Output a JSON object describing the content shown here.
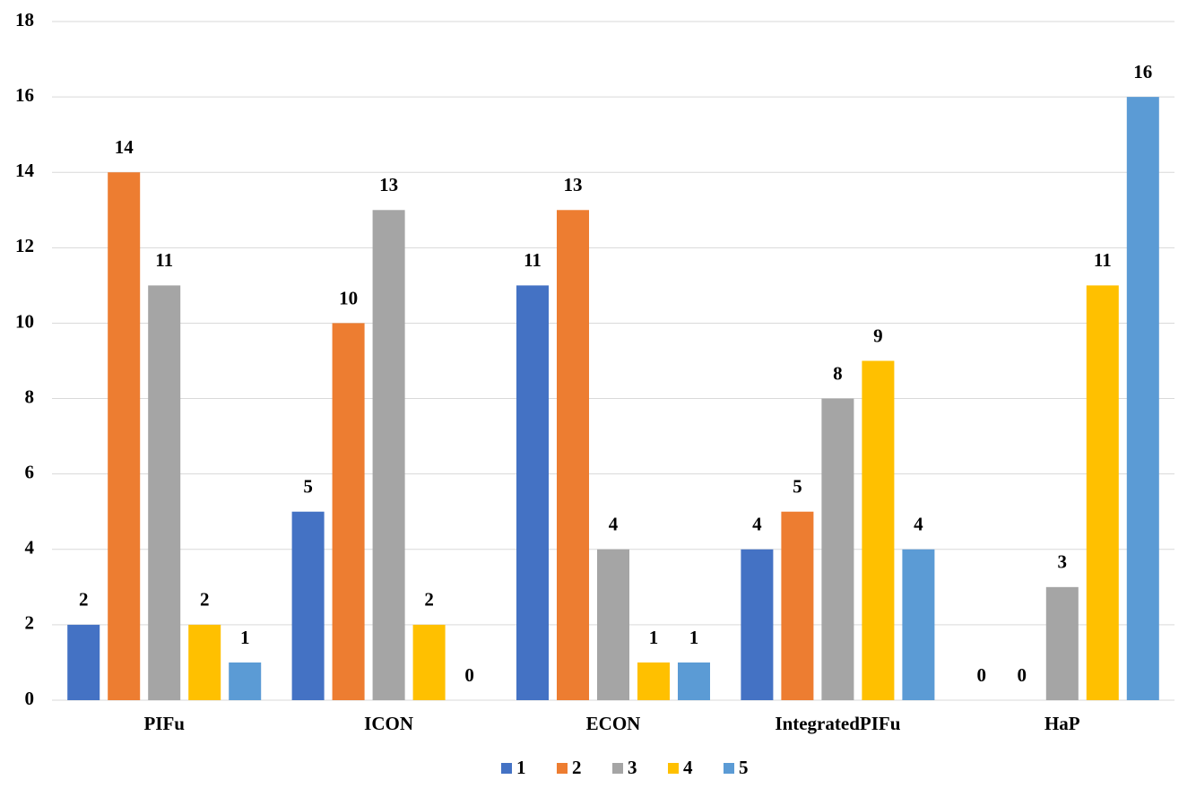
{
  "chart_data": {
    "type": "bar",
    "categories": [
      "PIFu",
      "ICON",
      "ECON",
      "IntegratedPIFu",
      "HaP"
    ],
    "series": [
      {
        "name": "1",
        "color": "#4472c4",
        "values": [
          2,
          5,
          11,
          4,
          0
        ]
      },
      {
        "name": "2",
        "color": "#ed7d31",
        "values": [
          14,
          10,
          13,
          5,
          0
        ]
      },
      {
        "name": "3",
        "color": "#a5a5a5",
        "values": [
          11,
          13,
          4,
          8,
          3
        ]
      },
      {
        "name": "4",
        "color": "#ffc000",
        "values": [
          2,
          2,
          1,
          9,
          11
        ]
      },
      {
        "name": "5",
        "color": "#5b9bd5",
        "values": [
          1,
          0,
          1,
          4,
          16
        ]
      }
    ],
    "ylim": [
      0,
      18
    ],
    "yticks": [
      0,
      2,
      4,
      6,
      8,
      10,
      12,
      14,
      16,
      18
    ],
    "grid": true,
    "legend": "bottom"
  }
}
